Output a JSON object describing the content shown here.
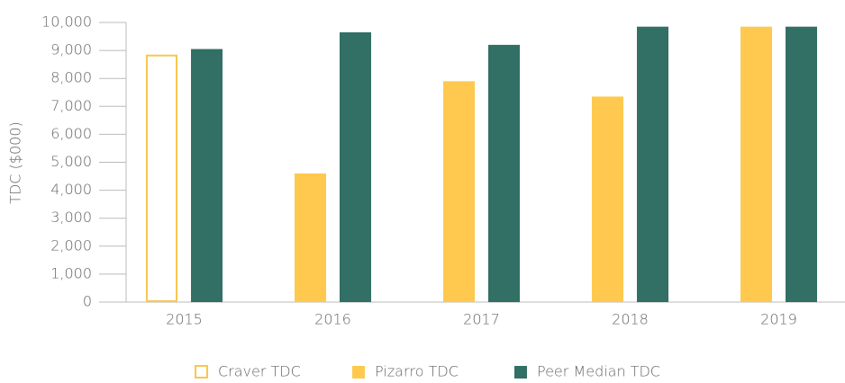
{
  "chart_data": {
    "type": "bar",
    "y_label": "TDC ($000)",
    "categories": [
      "2015",
      "2016",
      "2017",
      "2018",
      "2019"
    ],
    "series": [
      {
        "name": "Craver TDC",
        "color": "#f9c74f",
        "outline": true,
        "values": [
          8850,
          null,
          null,
          null,
          null
        ]
      },
      {
        "name": "Pizarro TDC",
        "color": "#fec94e",
        "values": [
          null,
          4600,
          7900,
          7350,
          9850
        ]
      },
      {
        "name": "Peer Median TDC",
        "color": "#326f65",
        "values": [
          9050,
          9650,
          9200,
          9850,
          9850
        ]
      }
    ],
    "ylim": [
      0,
      10000
    ],
    "yticks": [
      0,
      {
        "value": 1000,
        "label": "1,000"
      },
      {
        "value": 2000,
        "label": "2,000"
      },
      {
        "value": 3000,
        "label": "3,000"
      },
      {
        "value": 4000,
        "label": "4,000"
      },
      {
        "value": 5000,
        "label": "5,000"
      },
      {
        "value": 6000,
        "label": "6,000"
      },
      {
        "value": 7000,
        "label": "7,000"
      },
      {
        "value": 8000,
        "label": "8,000"
      },
      {
        "value": 9000,
        "label": "9,000"
      },
      {
        "value": 10000,
        "label": "10,000"
      }
    ],
    "grid": false,
    "legend": "bottom"
  }
}
